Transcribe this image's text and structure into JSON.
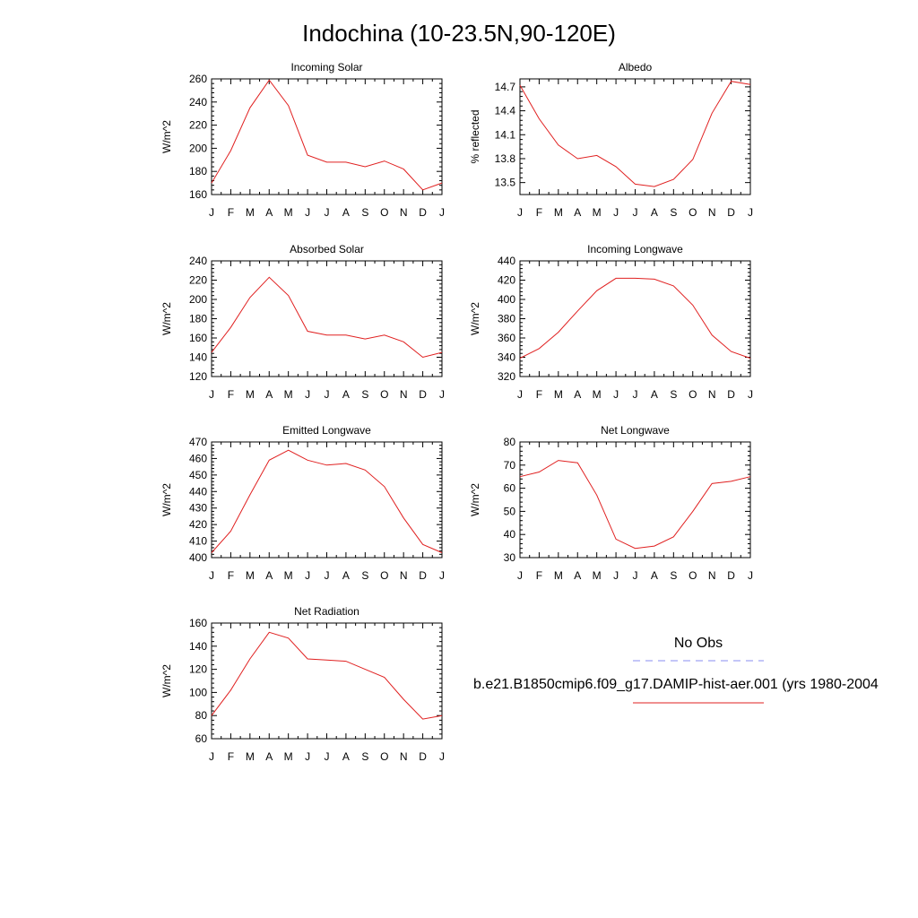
{
  "figure": {
    "title": "Indochina (10-23.5N,90-120E)"
  },
  "months": [
    "J",
    "F",
    "M",
    "A",
    "M",
    "J",
    "J",
    "A",
    "S",
    "O",
    "N",
    "D",
    "J"
  ],
  "legend": {
    "items": [
      {
        "label": "No Obs",
        "color": "#8a8cf0",
        "style": "dashed"
      },
      {
        "label": "b.e21.B1850cmip6.f09_g17.DAMIP-hist-aer.001 (yrs 1980-2004",
        "color": "#e02020",
        "style": "solid"
      }
    ]
  },
  "chart_data": [
    {
      "type": "line",
      "title": "Incoming Solar",
      "ylabel": "W/m^2",
      "ylim": [
        160,
        260
      ],
      "yticks": [
        160,
        180,
        200,
        220,
        240,
        260
      ],
      "series": [
        {
          "color": "#e02020",
          "values": [
            170,
            198,
            235,
            259,
            237,
            194,
            188,
            188,
            184,
            189,
            182,
            164,
            170
          ]
        }
      ]
    },
    {
      "type": "line",
      "title": "Albedo",
      "ylabel": "% reflected",
      "ylim": [
        13.35,
        14.8
      ],
      "yticks": [
        13.5,
        13.8,
        14.1,
        14.4,
        14.7
      ],
      "series": [
        {
          "color": "#e02020",
          "values": [
            14.72,
            14.3,
            13.97,
            13.8,
            13.84,
            13.7,
            13.48,
            13.45,
            13.54,
            13.79,
            14.37,
            14.77,
            14.73
          ]
        }
      ]
    },
    {
      "type": "line",
      "title": "Absorbed Solar",
      "ylabel": "W/m^2",
      "ylim": [
        120,
        240
      ],
      "yticks": [
        120,
        140,
        160,
        180,
        200,
        220,
        240
      ],
      "series": [
        {
          "color": "#e02020",
          "values": [
            145,
            171,
            202,
            223,
            204,
            167,
            163,
            163,
            159,
            163,
            156,
            140,
            145
          ]
        }
      ]
    },
    {
      "type": "line",
      "title": "Incoming Longwave",
      "ylabel": "W/m^2",
      "ylim": [
        320,
        440
      ],
      "yticks": [
        320,
        340,
        360,
        380,
        400,
        420,
        440
      ],
      "series": [
        {
          "color": "#e02020",
          "values": [
            339,
            349,
            366,
            388,
            409,
            422,
            422,
            421,
            414,
            394,
            363,
            346,
            339
          ]
        }
      ]
    },
    {
      "type": "line",
      "title": "Emitted Longwave",
      "ylabel": "W/m^2",
      "ylim": [
        400,
        470
      ],
      "yticks": [
        400,
        410,
        420,
        430,
        440,
        450,
        460,
        470
      ],
      "series": [
        {
          "color": "#e02020",
          "values": [
            403,
            416,
            438,
            459,
            465,
            459,
            456,
            457,
            453,
            443,
            424,
            408,
            403
          ]
        }
      ]
    },
    {
      "type": "line",
      "title": "Net Longwave",
      "ylabel": "W/m^2",
      "ylim": [
        30,
        80
      ],
      "yticks": [
        30,
        40,
        50,
        60,
        70,
        80
      ],
      "series": [
        {
          "color": "#e02020",
          "values": [
            65,
            67,
            72,
            71,
            57,
            38,
            34,
            35,
            39,
            50,
            62,
            63,
            65
          ]
        }
      ]
    },
    {
      "type": "line",
      "title": "Net Radiation",
      "ylabel": "W/m^2",
      "ylim": [
        60,
        160
      ],
      "yticks": [
        60,
        80,
        100,
        120,
        140,
        160
      ],
      "series": [
        {
          "color": "#e02020",
          "values": [
            80,
            102,
            129,
            152,
            147,
            129,
            128,
            127,
            120,
            113,
            94,
            77,
            80
          ]
        }
      ]
    }
  ]
}
